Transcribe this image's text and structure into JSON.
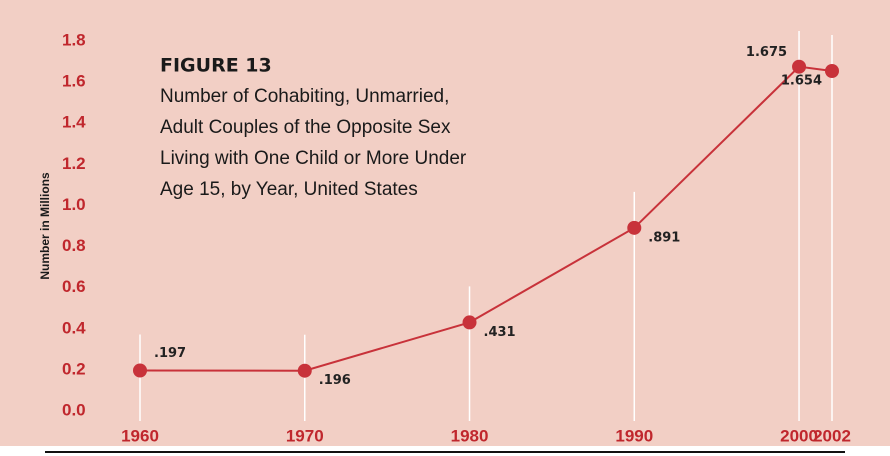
{
  "chart_data": {
    "type": "line",
    "title": "FIGURE 13",
    "subtitle": [
      "Number of Cohabiting, Unmarried,",
      "Adult Couples of the Opposite Sex",
      "Living with One Child or More Under",
      "Age 15, by Year, United States"
    ],
    "ylabel": "Number in Millions",
    "x": [
      1960,
      1970,
      1980,
      1990,
      2000,
      2002
    ],
    "series": [
      {
        "name": null,
        "color": "#c8323a",
        "values": [
          0.197,
          0.196,
          0.431,
          0.891,
          1.675,
          1.654
        ],
        "value_labels": [
          ".197",
          ".196",
          ".431",
          ".891",
          "1.675",
          "1.654"
        ]
      }
    ],
    "xlim": [
      1960,
      2002
    ],
    "xticks": [
      1960,
      1970,
      1980,
      1990,
      2000,
      2002
    ],
    "ylim": [
      0,
      1.8
    ],
    "yticks": [
      {
        "value": 0,
        "label": "0.0"
      },
      0.2,
      0.4,
      0.6,
      0.8,
      {
        "value": 1,
        "label": "1.0"
      },
      1.2,
      1.4,
      1.6,
      1.8
    ]
  }
}
